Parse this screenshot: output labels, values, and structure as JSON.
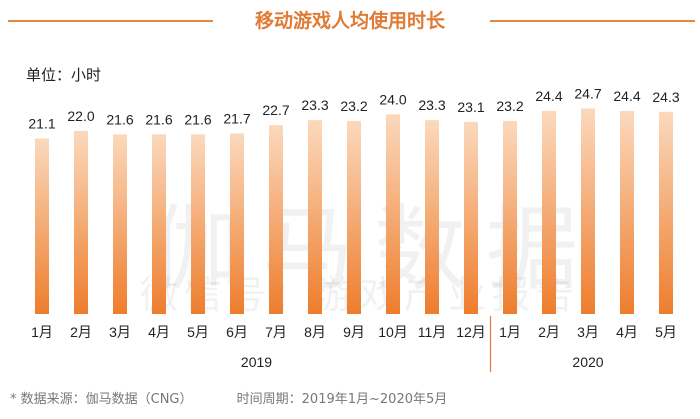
{
  "chart_data": {
    "type": "bar",
    "title": "移动游戏人均使用时长",
    "unit_label": "单位：小时",
    "categories": [
      "1月",
      "2月",
      "3月",
      "4月",
      "5月",
      "6月",
      "7月",
      "8月",
      "9月",
      "10月",
      "11月",
      "12月",
      "1月",
      "2月",
      "3月",
      "4月",
      "5月"
    ],
    "values": [
      21.1,
      22.0,
      21.6,
      21.6,
      21.6,
      21.7,
      22.7,
      23.3,
      23.2,
      24.0,
      23.3,
      23.1,
      23.2,
      24.4,
      24.7,
      24.4,
      24.3
    ],
    "groups": [
      {
        "label": "2019",
        "count": 12
      },
      {
        "label": "2020",
        "count": 5
      }
    ],
    "ylim": [
      0,
      25
    ],
    "colors": {
      "bar_top": "#fbd9bd",
      "bar_bottom": "#ee7d2d",
      "title": "#e07a35",
      "divider": "#e07a35"
    }
  },
  "watermark": {
    "main": "伽马数据",
    "sub": "微信号：游戏产业报告"
  },
  "footer": {
    "source": "*  数据来源：伽马数据（CNG）",
    "period": "时间周期：2019年1月~2020年5月"
  }
}
